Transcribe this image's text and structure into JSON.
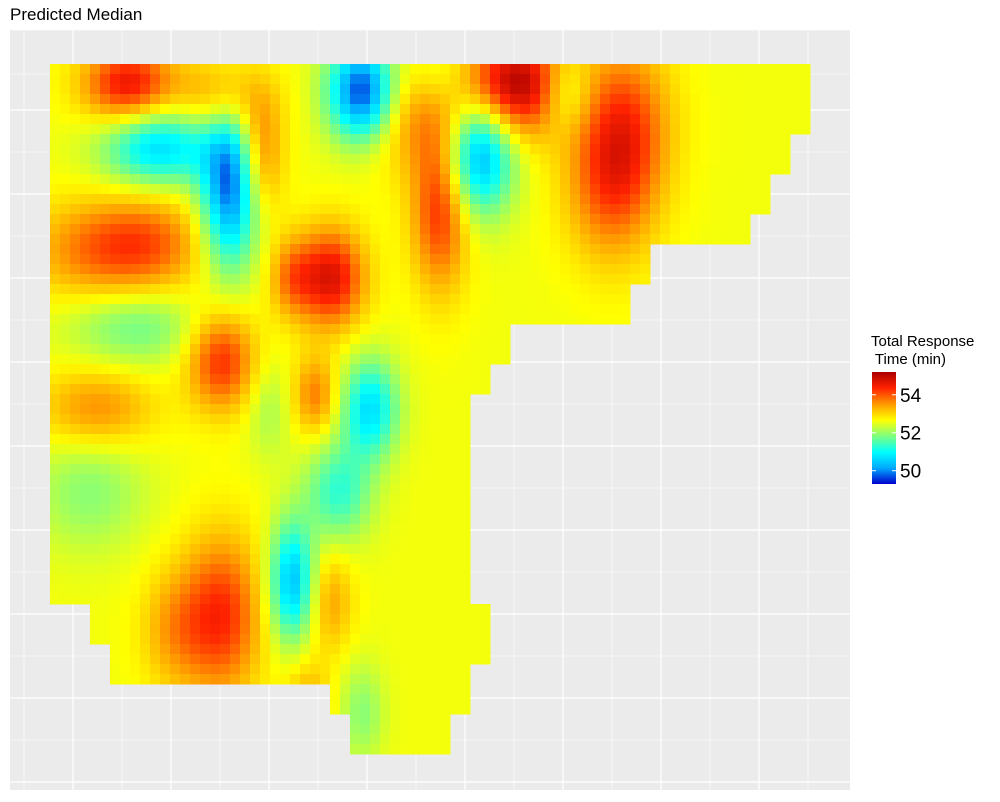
{
  "chart_data": {
    "type": "heatmap",
    "title": "Predicted Median",
    "xlabel": "",
    "ylabel": "",
    "legend": {
      "title": "Total Response\n Time (min)",
      "ticks": [
        54,
        52,
        50
      ],
      "range": [
        49.3,
        55.2
      ],
      "placement": "right",
      "colors": [
        "#0000cc",
        "#00aaff",
        "#00ffff",
        "#7fff7f",
        "#ffff00",
        "#ff9900",
        "#ff2200",
        "#aa0000"
      ]
    },
    "axes": {
      "x_ticks_shown": false,
      "y_ticks_shown": false,
      "grid": true
    },
    "hotspots": [
      {
        "x": 0.1,
        "y": 0.97,
        "value": 54.6,
        "sx": 0.04,
        "sy": 0.04
      },
      {
        "x": 0.22,
        "y": 0.95,
        "value": 53.6,
        "sx": 0.04,
        "sy": 0.04
      },
      {
        "x": 0.4,
        "y": 0.96,
        "value": 49.4,
        "sx": 0.03,
        "sy": 0.05
      },
      {
        "x": 0.6,
        "y": 0.97,
        "value": 55.2,
        "sx": 0.05,
        "sy": 0.05
      },
      {
        "x": 0.47,
        "y": 0.93,
        "value": 53.6,
        "sx": 0.05,
        "sy": 0.06
      },
      {
        "x": 0.74,
        "y": 0.92,
        "value": 53.8,
        "sx": 0.04,
        "sy": 0.08
      },
      {
        "x": 0.5,
        "y": 0.98,
        "value": 51.9,
        "sx": 0.03,
        "sy": 0.04
      },
      {
        "x": 0.66,
        "y": 0.96,
        "value": 51.4,
        "sx": 0.025,
        "sy": 0.04
      },
      {
        "x": 0.14,
        "y": 0.88,
        "value": 50.6,
        "sx": 0.05,
        "sy": 0.04
      },
      {
        "x": 0.23,
        "y": 0.82,
        "value": 49.8,
        "sx": 0.025,
        "sy": 0.08
      },
      {
        "x": 0.55,
        "y": 0.87,
        "value": 50.1,
        "sx": 0.03,
        "sy": 0.06
      },
      {
        "x": 0.27,
        "y": 0.87,
        "value": 53.8,
        "sx": 0.02,
        "sy": 0.06
      },
      {
        "x": 0.5,
        "y": 0.79,
        "value": 54.3,
        "sx": 0.025,
        "sy": 0.08
      },
      {
        "x": 0.72,
        "y": 0.83,
        "value": 54.0,
        "sx": 0.04,
        "sy": 0.08
      },
      {
        "x": 0.06,
        "y": 0.73,
        "value": 53.7,
        "sx": 0.06,
        "sy": 0.05
      },
      {
        "x": 0.13,
        "y": 0.74,
        "value": 53.6,
        "sx": 0.05,
        "sy": 0.05
      },
      {
        "x": 0.36,
        "y": 0.69,
        "value": 54.7,
        "sx": 0.03,
        "sy": 0.05
      },
      {
        "x": 0.31,
        "y": 0.69,
        "value": 53.6,
        "sx": 0.02,
        "sy": 0.04
      },
      {
        "x": 0.11,
        "y": 0.62,
        "value": 51.7,
        "sx": 0.06,
        "sy": 0.04
      },
      {
        "x": 0.06,
        "y": 0.5,
        "value": 53.6,
        "sx": 0.05,
        "sy": 0.04
      },
      {
        "x": 0.22,
        "y": 0.57,
        "value": 54.3,
        "sx": 0.03,
        "sy": 0.05
      },
      {
        "x": 0.28,
        "y": 0.5,
        "value": 52.1,
        "sx": 0.02,
        "sy": 0.05
      },
      {
        "x": 0.34,
        "y": 0.52,
        "value": 53.7,
        "sx": 0.02,
        "sy": 0.04
      },
      {
        "x": 0.41,
        "y": 0.5,
        "value": 50.7,
        "sx": 0.025,
        "sy": 0.05
      },
      {
        "x": 0.37,
        "y": 0.38,
        "value": 51.3,
        "sx": 0.03,
        "sy": 0.05
      },
      {
        "x": 0.31,
        "y": 0.25,
        "value": 50.4,
        "sx": 0.02,
        "sy": 0.06
      },
      {
        "x": 0.36,
        "y": 0.22,
        "value": 53.4,
        "sx": 0.02,
        "sy": 0.05
      },
      {
        "x": 0.05,
        "y": 0.38,
        "value": 51.9,
        "sx": 0.05,
        "sy": 0.06
      },
      {
        "x": 0.22,
        "y": 0.2,
        "value": 54.3,
        "sx": 0.035,
        "sy": 0.08
      },
      {
        "x": 0.16,
        "y": 0.18,
        "value": 53.4,
        "sx": 0.03,
        "sy": 0.06
      },
      {
        "x": 0.33,
        "y": 0.06,
        "value": 53.5,
        "sx": 0.02,
        "sy": 0.05
      },
      {
        "x": 0.4,
        "y": 0.06,
        "value": 51.9,
        "sx": 0.02,
        "sy": 0.05
      }
    ]
  }
}
